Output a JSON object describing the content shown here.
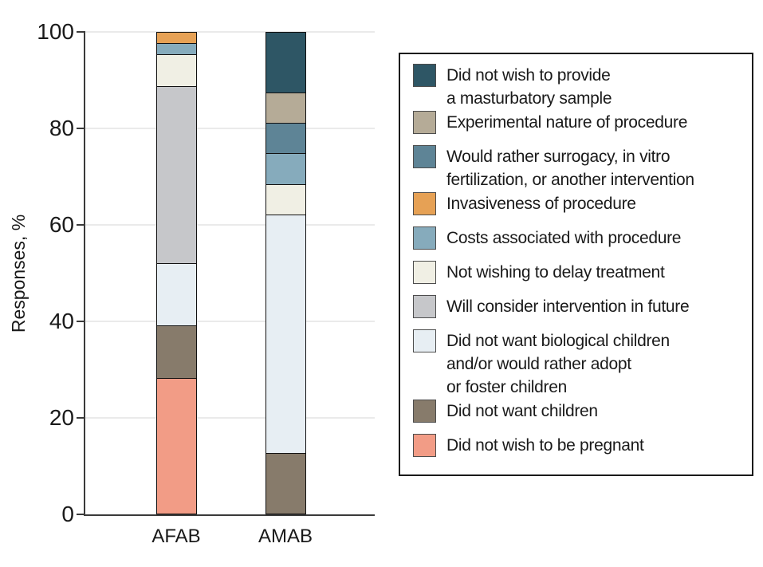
{
  "chart_data": {
    "type": "bar",
    "variant": "stacked-vertical",
    "title": "",
    "xlabel": "",
    "ylabel": "Responses, %",
    "ylim": [
      0,
      100
    ],
    "yticks": [
      0,
      20,
      40,
      60,
      80,
      100
    ],
    "grid": "horizontal-light",
    "legend_position": "right-box",
    "categories": [
      "AFAB",
      "AMAB"
    ],
    "stack_note": "series listed top-of-stack first (legend order); bars stack bottom-up in reverse of this list; values are percent of responses per category",
    "series": [
      {
        "name": "Did not wish to provide a masturbatory sample",
        "legend_lines": [
          "Did not wish to provide",
          "a masturbatory sample"
        ],
        "color": "#2e5665",
        "values": [
          0,
          12.5
        ]
      },
      {
        "name": "Experimental nature of procedure",
        "legend_lines": [
          "Experimental nature of procedure"
        ],
        "color": "#b5ab97",
        "values": [
          0,
          6.25
        ]
      },
      {
        "name": "Would rather surrogacy, in vitro fertilization, or another intervention",
        "legend_lines": [
          "Would rather surrogacy, in vitro",
          "fertilization, or another intervention"
        ],
        "color": "#5e8496",
        "values": [
          0,
          6.25
        ]
      },
      {
        "name": "Invasiveness of procedure",
        "legend_lines": [
          "Invasiveness of procedure"
        ],
        "color": "#e6a155",
        "values": [
          2.2,
          0
        ]
      },
      {
        "name": "Costs associated with procedure",
        "legend_lines": [
          "Costs associated with procedure"
        ],
        "color": "#86abbc",
        "values": [
          2.2,
          6.25
        ]
      },
      {
        "name": "Not wishing to delay treatment",
        "legend_lines": [
          "Not wishing to delay treatment"
        ],
        "color": "#f0efe4",
        "values": [
          6.5,
          6.25
        ]
      },
      {
        "name": "Will consider intervention in future",
        "legend_lines": [
          "Will consider intervention in future"
        ],
        "color": "#c6c7ca",
        "values": [
          37.0,
          0
        ]
      },
      {
        "name": "Did not want biological children and/or would rather adopt or foster children",
        "legend_lines": [
          "Did not want biological children",
          "and/or would rather adopt",
          "or foster children"
        ],
        "color": "#e7eef3",
        "values": [
          13.0,
          50.0
        ]
      },
      {
        "name": "Did not want children",
        "legend_lines": [
          "Did not want children"
        ],
        "color": "#877b6b",
        "values": [
          10.9,
          12.5
        ]
      },
      {
        "name": "Did not wish to be pregnant",
        "legend_lines": [
          "Did not wish to be pregnant"
        ],
        "color": "#f29c86",
        "values": [
          28.3,
          0
        ]
      }
    ]
  },
  "colors": {
    "axis": "#3a3a3a",
    "gridline": "#eaeaea",
    "segment_border": "#111111",
    "legend_border": "#1a1a1a",
    "text": "#1a1a1a",
    "background": "#ffffff"
  }
}
